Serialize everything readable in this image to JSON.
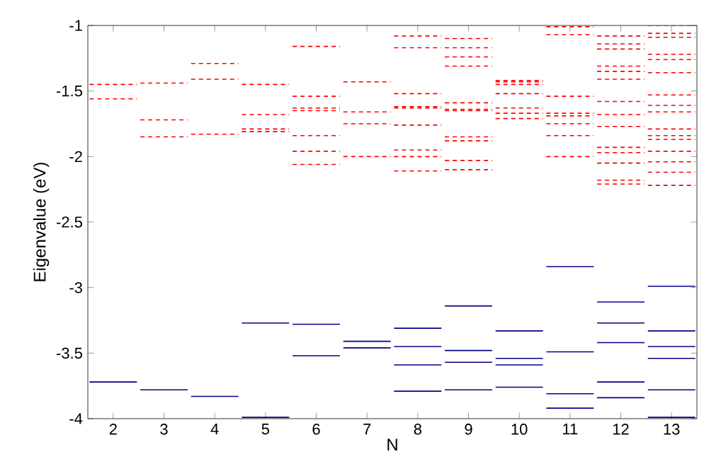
{
  "chart_data": {
    "type": "line",
    "xlabel": "N",
    "ylabel": "Eigenvalue (eV)",
    "xlim": [
      1.5,
      13.5
    ],
    "xticks": [
      2,
      3,
      4,
      5,
      6,
      7,
      8,
      9,
      10,
      11,
      12,
      13
    ],
    "ylim": [
      -4,
      -1
    ],
    "yticks": [
      -4,
      -3.5,
      -3,
      -2.5,
      -2,
      -1.5,
      -1
    ],
    "series": [
      {
        "color": "#00008b",
        "line_style": "solid",
        "x": [
          1.5,
          2.5
        ],
        "values": [
          -3.72,
          -3.72
        ]
      },
      {
        "color": "#00008b",
        "line_style": "solid",
        "x": [
          2.5,
          3.5
        ],
        "values": [
          -3.78,
          -3.78
        ]
      },
      {
        "color": "#00008b",
        "line_style": "solid",
        "x": [
          3.5,
          4.5
        ],
        "values": [
          -3.83,
          -3.83
        ]
      },
      {
        "color": "#00008b",
        "line_style": "solid",
        "x": [
          4.5,
          5.5
        ],
        "values": [
          -3.27,
          -3.27
        ]
      },
      {
        "color": "#00008b",
        "line_style": "solid",
        "x": [
          4.5,
          5.5
        ],
        "values": [
          -3.99,
          -3.99
        ]
      },
      {
        "color": "#00008b",
        "line_style": "solid",
        "x": [
          5.5,
          6.5
        ],
        "values": [
          -3.28,
          -3.28
        ]
      },
      {
        "color": "#00008b",
        "line_style": "solid",
        "x": [
          5.5,
          6.5
        ],
        "values": [
          -3.52,
          -3.52
        ]
      },
      {
        "color": "#00008b",
        "line_style": "solid",
        "x": [
          6.5,
          7.5
        ],
        "values": [
          -3.41,
          -3.41
        ]
      },
      {
        "color": "#00008b",
        "line_style": "solid",
        "x": [
          6.5,
          7.5
        ],
        "values": [
          -3.46,
          -3.46
        ]
      },
      {
        "color": "#00008b",
        "line_style": "solid",
        "x": [
          7.5,
          8.5
        ],
        "values": [
          -3.31,
          -3.31
        ]
      },
      {
        "color": "#00008b",
        "line_style": "solid",
        "x": [
          7.5,
          8.5
        ],
        "values": [
          -3.45,
          -3.45
        ]
      },
      {
        "color": "#00008b",
        "line_style": "solid",
        "x": [
          7.5,
          8.5
        ],
        "values": [
          -3.59,
          -3.59
        ]
      },
      {
        "color": "#00008b",
        "line_style": "solid",
        "x": [
          7.5,
          8.5
        ],
        "values": [
          -3.79,
          -3.79
        ]
      },
      {
        "color": "#00008b",
        "line_style": "solid",
        "x": [
          8.5,
          9.5
        ],
        "values": [
          -3.14,
          -3.14
        ]
      },
      {
        "color": "#00008b",
        "line_style": "solid",
        "x": [
          8.5,
          9.5
        ],
        "values": [
          -3.48,
          -3.48
        ]
      },
      {
        "color": "#00008b",
        "line_style": "solid",
        "x": [
          8.5,
          9.5
        ],
        "values": [
          -3.57,
          -3.57
        ]
      },
      {
        "color": "#00008b",
        "line_style": "solid",
        "x": [
          8.5,
          9.5
        ],
        "values": [
          -3.78,
          -3.78
        ]
      },
      {
        "color": "#00008b",
        "line_style": "solid",
        "x": [
          9.5,
          10.5
        ],
        "values": [
          -3.33,
          -3.33
        ]
      },
      {
        "color": "#00008b",
        "line_style": "solid",
        "x": [
          9.5,
          10.5
        ],
        "values": [
          -3.54,
          -3.54
        ]
      },
      {
        "color": "#00008b",
        "line_style": "solid",
        "x": [
          9.5,
          10.5
        ],
        "values": [
          -3.59,
          -3.59
        ]
      },
      {
        "color": "#00008b",
        "line_style": "solid",
        "x": [
          9.5,
          10.5
        ],
        "values": [
          -3.76,
          -3.76
        ]
      },
      {
        "color": "#00008b",
        "line_style": "solid",
        "x": [
          10.5,
          11.5
        ],
        "values": [
          -2.84,
          -2.84
        ]
      },
      {
        "color": "#00008b",
        "line_style": "solid",
        "x": [
          10.5,
          11.5
        ],
        "values": [
          -3.49,
          -3.49
        ]
      },
      {
        "color": "#00008b",
        "line_style": "solid",
        "x": [
          10.5,
          11.5
        ],
        "values": [
          -3.81,
          -3.81
        ]
      },
      {
        "color": "#00008b",
        "line_style": "solid",
        "x": [
          10.5,
          11.5
        ],
        "values": [
          -3.92,
          -3.92
        ]
      },
      {
        "color": "#00008b",
        "line_style": "solid",
        "x": [
          11.5,
          12.5
        ],
        "values": [
          -3.11,
          -3.11
        ]
      },
      {
        "color": "#00008b",
        "line_style": "solid",
        "x": [
          11.5,
          12.5
        ],
        "values": [
          -3.27,
          -3.27
        ]
      },
      {
        "color": "#00008b",
        "line_style": "solid",
        "x": [
          11.5,
          12.5
        ],
        "values": [
          -3.42,
          -3.42
        ]
      },
      {
        "color": "#00008b",
        "line_style": "solid",
        "x": [
          11.5,
          12.5
        ],
        "values": [
          -3.72,
          -3.72
        ]
      },
      {
        "color": "#00008b",
        "line_style": "solid",
        "x": [
          11.5,
          12.5
        ],
        "values": [
          -3.84,
          -3.84
        ]
      },
      {
        "color": "#00008b",
        "line_style": "solid",
        "x": [
          12.5,
          13.5
        ],
        "values": [
          -2.99,
          -2.99
        ]
      },
      {
        "color": "#00008b",
        "line_style": "solid",
        "x": [
          12.5,
          13.5
        ],
        "values": [
          -3.33,
          -3.33
        ]
      },
      {
        "color": "#00008b",
        "line_style": "solid",
        "x": [
          12.5,
          13.5
        ],
        "values": [
          -3.45,
          -3.45
        ]
      },
      {
        "color": "#00008b",
        "line_style": "solid",
        "x": [
          12.5,
          13.5
        ],
        "values": [
          -3.54,
          -3.54
        ]
      },
      {
        "color": "#00008b",
        "line_style": "solid",
        "x": [
          12.5,
          13.5
        ],
        "values": [
          -3.78,
          -3.78
        ]
      },
      {
        "color": "#00008b",
        "line_style": "solid",
        "x": [
          12.5,
          13.5
        ],
        "values": [
          -3.99,
          -3.99
        ]
      },
      {
        "color": "#ff0000",
        "line_style": "dashed",
        "x": [
          1.5,
          2.5
        ],
        "values": [
          -1.45,
          -1.45
        ]
      },
      {
        "color": "#ff0000",
        "line_style": "dashed",
        "x": [
          1.5,
          2.5
        ],
        "values": [
          -1.56,
          -1.56
        ]
      },
      {
        "color": "#ff0000",
        "line_style": "dashed",
        "x": [
          2.5,
          3.5
        ],
        "values": [
          -1.44,
          -1.44
        ]
      },
      {
        "color": "#ff0000",
        "line_style": "dashed",
        "x": [
          2.5,
          3.5
        ],
        "values": [
          -1.72,
          -1.72
        ]
      },
      {
        "color": "#ff0000",
        "line_style": "dashed",
        "x": [
          2.5,
          3.5
        ],
        "values": [
          -1.85,
          -1.85
        ]
      },
      {
        "color": "#ff0000",
        "line_style": "dashed",
        "x": [
          3.5,
          4.5
        ],
        "values": [
          -1.29,
          -1.29
        ]
      },
      {
        "color": "#ff0000",
        "line_style": "dashed",
        "x": [
          3.5,
          4.5
        ],
        "values": [
          -1.41,
          -1.41
        ]
      },
      {
        "color": "#ff0000",
        "line_style": "dashed",
        "x": [
          3.5,
          4.5
        ],
        "values": [
          -1.83,
          -1.83
        ]
      },
      {
        "color": "#ff0000",
        "line_style": "dashed",
        "x": [
          4.5,
          5.5
        ],
        "values": [
          -1.45,
          -1.45
        ]
      },
      {
        "color": "#ff0000",
        "line_style": "dashed",
        "x": [
          4.5,
          5.5
        ],
        "values": [
          -1.68,
          -1.68
        ]
      },
      {
        "color": "#ff0000",
        "line_style": "dashed",
        "x": [
          4.5,
          5.5
        ],
        "values": [
          -1.79,
          -1.79
        ]
      },
      {
        "color": "#ff0000",
        "line_style": "dashed",
        "x": [
          4.5,
          5.5
        ],
        "values": [
          -1.81,
          -1.81
        ]
      },
      {
        "color": "#ff0000",
        "line_style": "dashed",
        "x": [
          5.5,
          6.5
        ],
        "values": [
          -1.16,
          -1.16
        ]
      },
      {
        "color": "#ff0000",
        "line_style": "dashed",
        "x": [
          5.5,
          6.5
        ],
        "values": [
          -1.54,
          -1.54
        ]
      },
      {
        "color": "#ff0000",
        "line_style": "dashed",
        "x": [
          5.5,
          6.5
        ],
        "values": [
          -1.63,
          -1.63
        ]
      },
      {
        "color": "#ff0000",
        "line_style": "dashed",
        "x": [
          5.5,
          6.5
        ],
        "values": [
          -1.65,
          -1.65
        ]
      },
      {
        "color": "#ff0000",
        "line_style": "dashed",
        "x": [
          5.5,
          6.5
        ],
        "values": [
          -1.84,
          -1.84
        ]
      },
      {
        "color": "#ff0000",
        "line_style": "dashed",
        "x": [
          5.5,
          6.5
        ],
        "values": [
          -1.96,
          -1.96
        ]
      },
      {
        "color": "#ff0000",
        "line_style": "dashed",
        "x": [
          5.5,
          6.5
        ],
        "values": [
          -2.06,
          -2.06
        ]
      },
      {
        "color": "#ff0000",
        "line_style": "dashed",
        "x": [
          6.5,
          7.5
        ],
        "values": [
          -1.43,
          -1.43
        ]
      },
      {
        "color": "#ff0000",
        "line_style": "dashed",
        "x": [
          6.5,
          7.5
        ],
        "values": [
          -1.66,
          -1.66
        ]
      },
      {
        "color": "#ff0000",
        "line_style": "dashed",
        "x": [
          6.5,
          7.5
        ],
        "values": [
          -1.75,
          -1.75
        ]
      },
      {
        "color": "#ff0000",
        "line_style": "dashed",
        "x": [
          6.5,
          7.5
        ],
        "values": [
          -2.0,
          -2.0
        ]
      },
      {
        "color": "#ff0000",
        "line_style": "dashed",
        "x": [
          7.5,
          8.5
        ],
        "values": [
          -1.08,
          -1.08
        ]
      },
      {
        "color": "#ff0000",
        "line_style": "dashed",
        "x": [
          7.5,
          8.5
        ],
        "values": [
          -1.17,
          -1.17
        ]
      },
      {
        "color": "#ff0000",
        "line_style": "dashed",
        "x": [
          7.5,
          8.5
        ],
        "values": [
          -1.52,
          -1.52
        ]
      },
      {
        "color": "#ff0000",
        "line_style": "dashed",
        "x": [
          7.5,
          8.5
        ],
        "values": [
          -1.62,
          -1.62
        ]
      },
      {
        "color": "#ff0000",
        "line_style": "dashed",
        "x": [
          7.5,
          8.5
        ],
        "values": [
          -1.63,
          -1.63
        ]
      },
      {
        "color": "#ff0000",
        "line_style": "dashed",
        "x": [
          7.5,
          8.5
        ],
        "values": [
          -1.76,
          -1.76
        ]
      },
      {
        "color": "#ff0000",
        "line_style": "dashed",
        "x": [
          7.5,
          8.5
        ],
        "values": [
          -1.95,
          -1.95
        ]
      },
      {
        "color": "#ff0000",
        "line_style": "dashed",
        "x": [
          7.5,
          8.5
        ],
        "values": [
          -2.0,
          -2.0
        ]
      },
      {
        "color": "#ff0000",
        "line_style": "dashed",
        "x": [
          7.5,
          8.5
        ],
        "values": [
          -2.11,
          -2.11
        ]
      },
      {
        "color": "#ff0000",
        "line_style": "dashed",
        "x": [
          8.5,
          9.5
        ],
        "values": [
          -1.1,
          -1.1
        ]
      },
      {
        "color": "#ff0000",
        "line_style": "dashed",
        "x": [
          8.5,
          9.5
        ],
        "values": [
          -1.17,
          -1.17
        ]
      },
      {
        "color": "#ff0000",
        "line_style": "dashed",
        "x": [
          8.5,
          9.5
        ],
        "values": [
          -1.24,
          -1.24
        ]
      },
      {
        "color": "#ff0000",
        "line_style": "dashed",
        "x": [
          8.5,
          9.5
        ],
        "values": [
          -1.31,
          -1.31
        ]
      },
      {
        "color": "#ff0000",
        "line_style": "dashed",
        "x": [
          8.5,
          9.5
        ],
        "values": [
          -1.59,
          -1.59
        ]
      },
      {
        "color": "#ff0000",
        "line_style": "dashed",
        "x": [
          8.5,
          9.5
        ],
        "values": [
          -1.64,
          -1.64
        ]
      },
      {
        "color": "#ff0000",
        "line_style": "dashed",
        "x": [
          8.5,
          9.5
        ],
        "values": [
          -1.65,
          -1.65
        ]
      },
      {
        "color": "#ff0000",
        "line_style": "dashed",
        "x": [
          8.5,
          9.5
        ],
        "values": [
          -1.85,
          -1.85
        ]
      },
      {
        "color": "#ff0000",
        "line_style": "dashed",
        "x": [
          8.5,
          9.5
        ],
        "values": [
          -1.88,
          -1.88
        ]
      },
      {
        "color": "#ff0000",
        "line_style": "dashed",
        "x": [
          8.5,
          9.5
        ],
        "values": [
          -2.03,
          -2.03
        ]
      },
      {
        "color": "#ff0000",
        "line_style": "dashed",
        "x": [
          8.5,
          9.5
        ],
        "values": [
          -2.1,
          -2.1
        ]
      },
      {
        "color": "#ff0000",
        "line_style": "dashed",
        "x": [
          9.5,
          10.5
        ],
        "values": [
          -1.42,
          -1.42
        ]
      },
      {
        "color": "#ff0000",
        "line_style": "dashed",
        "x": [
          9.5,
          10.5
        ],
        "values": [
          -1.43,
          -1.43
        ]
      },
      {
        "color": "#ff0000",
        "line_style": "dashed",
        "x": [
          9.5,
          10.5
        ],
        "values": [
          -1.45,
          -1.45
        ]
      },
      {
        "color": "#ff0000",
        "line_style": "dashed",
        "x": [
          9.5,
          10.5
        ],
        "values": [
          -1.52,
          -1.52
        ]
      },
      {
        "color": "#ff0000",
        "line_style": "dashed",
        "x": [
          9.5,
          10.5
        ],
        "values": [
          -1.63,
          -1.63
        ]
      },
      {
        "color": "#ff0000",
        "line_style": "dashed",
        "x": [
          9.5,
          10.5
        ],
        "values": [
          -1.67,
          -1.67
        ]
      },
      {
        "color": "#ff0000",
        "line_style": "dashed",
        "x": [
          9.5,
          10.5
        ],
        "values": [
          -1.71,
          -1.71
        ]
      },
      {
        "color": "#ff0000",
        "line_style": "dashed",
        "x": [
          10.5,
          11.5
        ],
        "values": [
          -1.01,
          -1.01
        ]
      },
      {
        "color": "#ff0000",
        "line_style": "dashed",
        "x": [
          10.5,
          11.5
        ],
        "values": [
          -1.07,
          -1.07
        ]
      },
      {
        "color": "#ff0000",
        "line_style": "dashed",
        "x": [
          10.5,
          11.5
        ],
        "values": [
          -1.54,
          -1.54
        ]
      },
      {
        "color": "#ff0000",
        "line_style": "dashed",
        "x": [
          10.5,
          11.5
        ],
        "values": [
          -1.67,
          -1.67
        ]
      },
      {
        "color": "#ff0000",
        "line_style": "dashed",
        "x": [
          10.5,
          11.5
        ],
        "values": [
          -1.69,
          -1.69
        ]
      },
      {
        "color": "#ff0000",
        "line_style": "dashed",
        "x": [
          10.5,
          11.5
        ],
        "values": [
          -1.75,
          -1.75
        ]
      },
      {
        "color": "#ff0000",
        "line_style": "dashed",
        "x": [
          10.5,
          11.5
        ],
        "values": [
          -1.84,
          -1.84
        ]
      },
      {
        "color": "#ff0000",
        "line_style": "dashed",
        "x": [
          10.5,
          11.5
        ],
        "values": [
          -2.0,
          -2.0
        ]
      },
      {
        "color": "#ff0000",
        "line_style": "dashed",
        "x": [
          11.5,
          12.5
        ],
        "values": [
          -1.08,
          -1.08
        ]
      },
      {
        "color": "#ff0000",
        "line_style": "dashed",
        "x": [
          11.5,
          12.5
        ],
        "values": [
          -1.14,
          -1.14
        ]
      },
      {
        "color": "#ff0000",
        "line_style": "dashed",
        "x": [
          11.5,
          12.5
        ],
        "values": [
          -1.18,
          -1.18
        ]
      },
      {
        "color": "#ff0000",
        "line_style": "dashed",
        "x": [
          11.5,
          12.5
        ],
        "values": [
          -1.31,
          -1.31
        ]
      },
      {
        "color": "#ff0000",
        "line_style": "dashed",
        "x": [
          11.5,
          12.5
        ],
        "values": [
          -1.35,
          -1.35
        ]
      },
      {
        "color": "#ff0000",
        "line_style": "dashed",
        "x": [
          11.5,
          12.5
        ],
        "values": [
          -1.41,
          -1.41
        ]
      },
      {
        "color": "#ff0000",
        "line_style": "dashed",
        "x": [
          11.5,
          12.5
        ],
        "values": [
          -1.58,
          -1.58
        ]
      },
      {
        "color": "#ff0000",
        "line_style": "dashed",
        "x": [
          11.5,
          12.5
        ],
        "values": [
          -1.68,
          -1.68
        ]
      },
      {
        "color": "#ff0000",
        "line_style": "dashed",
        "x": [
          11.5,
          12.5
        ],
        "values": [
          -1.77,
          -1.77
        ]
      },
      {
        "color": "#ff0000",
        "line_style": "dashed",
        "x": [
          11.5,
          12.5
        ],
        "values": [
          -1.93,
          -1.93
        ]
      },
      {
        "color": "#ff0000",
        "line_style": "dashed",
        "x": [
          11.5,
          12.5
        ],
        "values": [
          -1.97,
          -1.97
        ]
      },
      {
        "color": "#ff0000",
        "line_style": "dashed",
        "x": [
          11.5,
          12.5
        ],
        "values": [
          -2.05,
          -2.05
        ]
      },
      {
        "color": "#ff0000",
        "line_style": "dashed",
        "x": [
          11.5,
          12.5
        ],
        "values": [
          -2.18,
          -2.18
        ]
      },
      {
        "color": "#ff0000",
        "line_style": "dashed",
        "x": [
          11.5,
          12.5
        ],
        "values": [
          -2.21,
          -2.21
        ]
      },
      {
        "color": "#ff0000",
        "line_style": "dashed",
        "x": [
          12.5,
          13.5
        ],
        "values": [
          -1.0,
          -1.0
        ]
      },
      {
        "color": "#ff0000",
        "line_style": "dashed",
        "x": [
          12.5,
          13.5
        ],
        "values": [
          -1.06,
          -1.06
        ]
      },
      {
        "color": "#ff0000",
        "line_style": "dashed",
        "x": [
          12.5,
          13.5
        ],
        "values": [
          -1.09,
          -1.09
        ]
      },
      {
        "color": "#ff0000",
        "line_style": "dashed",
        "x": [
          12.5,
          13.5
        ],
        "values": [
          -1.22,
          -1.22
        ]
      },
      {
        "color": "#ff0000",
        "line_style": "dashed",
        "x": [
          12.5,
          13.5
        ],
        "values": [
          -1.26,
          -1.26
        ]
      },
      {
        "color": "#ff0000",
        "line_style": "dashed",
        "x": [
          12.5,
          13.5
        ],
        "values": [
          -1.36,
          -1.36
        ]
      },
      {
        "color": "#ff0000",
        "line_style": "dashed",
        "x": [
          12.5,
          13.5
        ],
        "values": [
          -1.53,
          -1.53
        ]
      },
      {
        "color": "#ff0000",
        "line_style": "dashed",
        "x": [
          12.5,
          13.5
        ],
        "values": [
          -1.61,
          -1.61
        ]
      },
      {
        "color": "#ff0000",
        "line_style": "dashed",
        "x": [
          12.5,
          13.5
        ],
        "values": [
          -1.66,
          -1.66
        ]
      },
      {
        "color": "#ff0000",
        "line_style": "dashed",
        "x": [
          12.5,
          13.5
        ],
        "values": [
          -1.79,
          -1.79
        ]
      },
      {
        "color": "#ff0000",
        "line_style": "dashed",
        "x": [
          12.5,
          13.5
        ],
        "values": [
          -1.84,
          -1.84
        ]
      },
      {
        "color": "#ff0000",
        "line_style": "dashed",
        "x": [
          12.5,
          13.5
        ],
        "values": [
          -1.87,
          -1.87
        ]
      },
      {
        "color": "#ff0000",
        "line_style": "dashed",
        "x": [
          12.5,
          13.5
        ],
        "values": [
          -1.96,
          -1.96
        ]
      },
      {
        "color": "#ff0000",
        "line_style": "dashed",
        "x": [
          12.5,
          13.5
        ],
        "values": [
          -2.04,
          -2.04
        ]
      },
      {
        "color": "#ff0000",
        "line_style": "dashed",
        "x": [
          12.5,
          13.5
        ],
        "values": [
          -2.12,
          -2.12
        ]
      },
      {
        "color": "#ff0000",
        "line_style": "dashed",
        "x": [
          12.5,
          13.5
        ],
        "values": [
          -2.22,
          -2.22
        ]
      }
    ]
  }
}
